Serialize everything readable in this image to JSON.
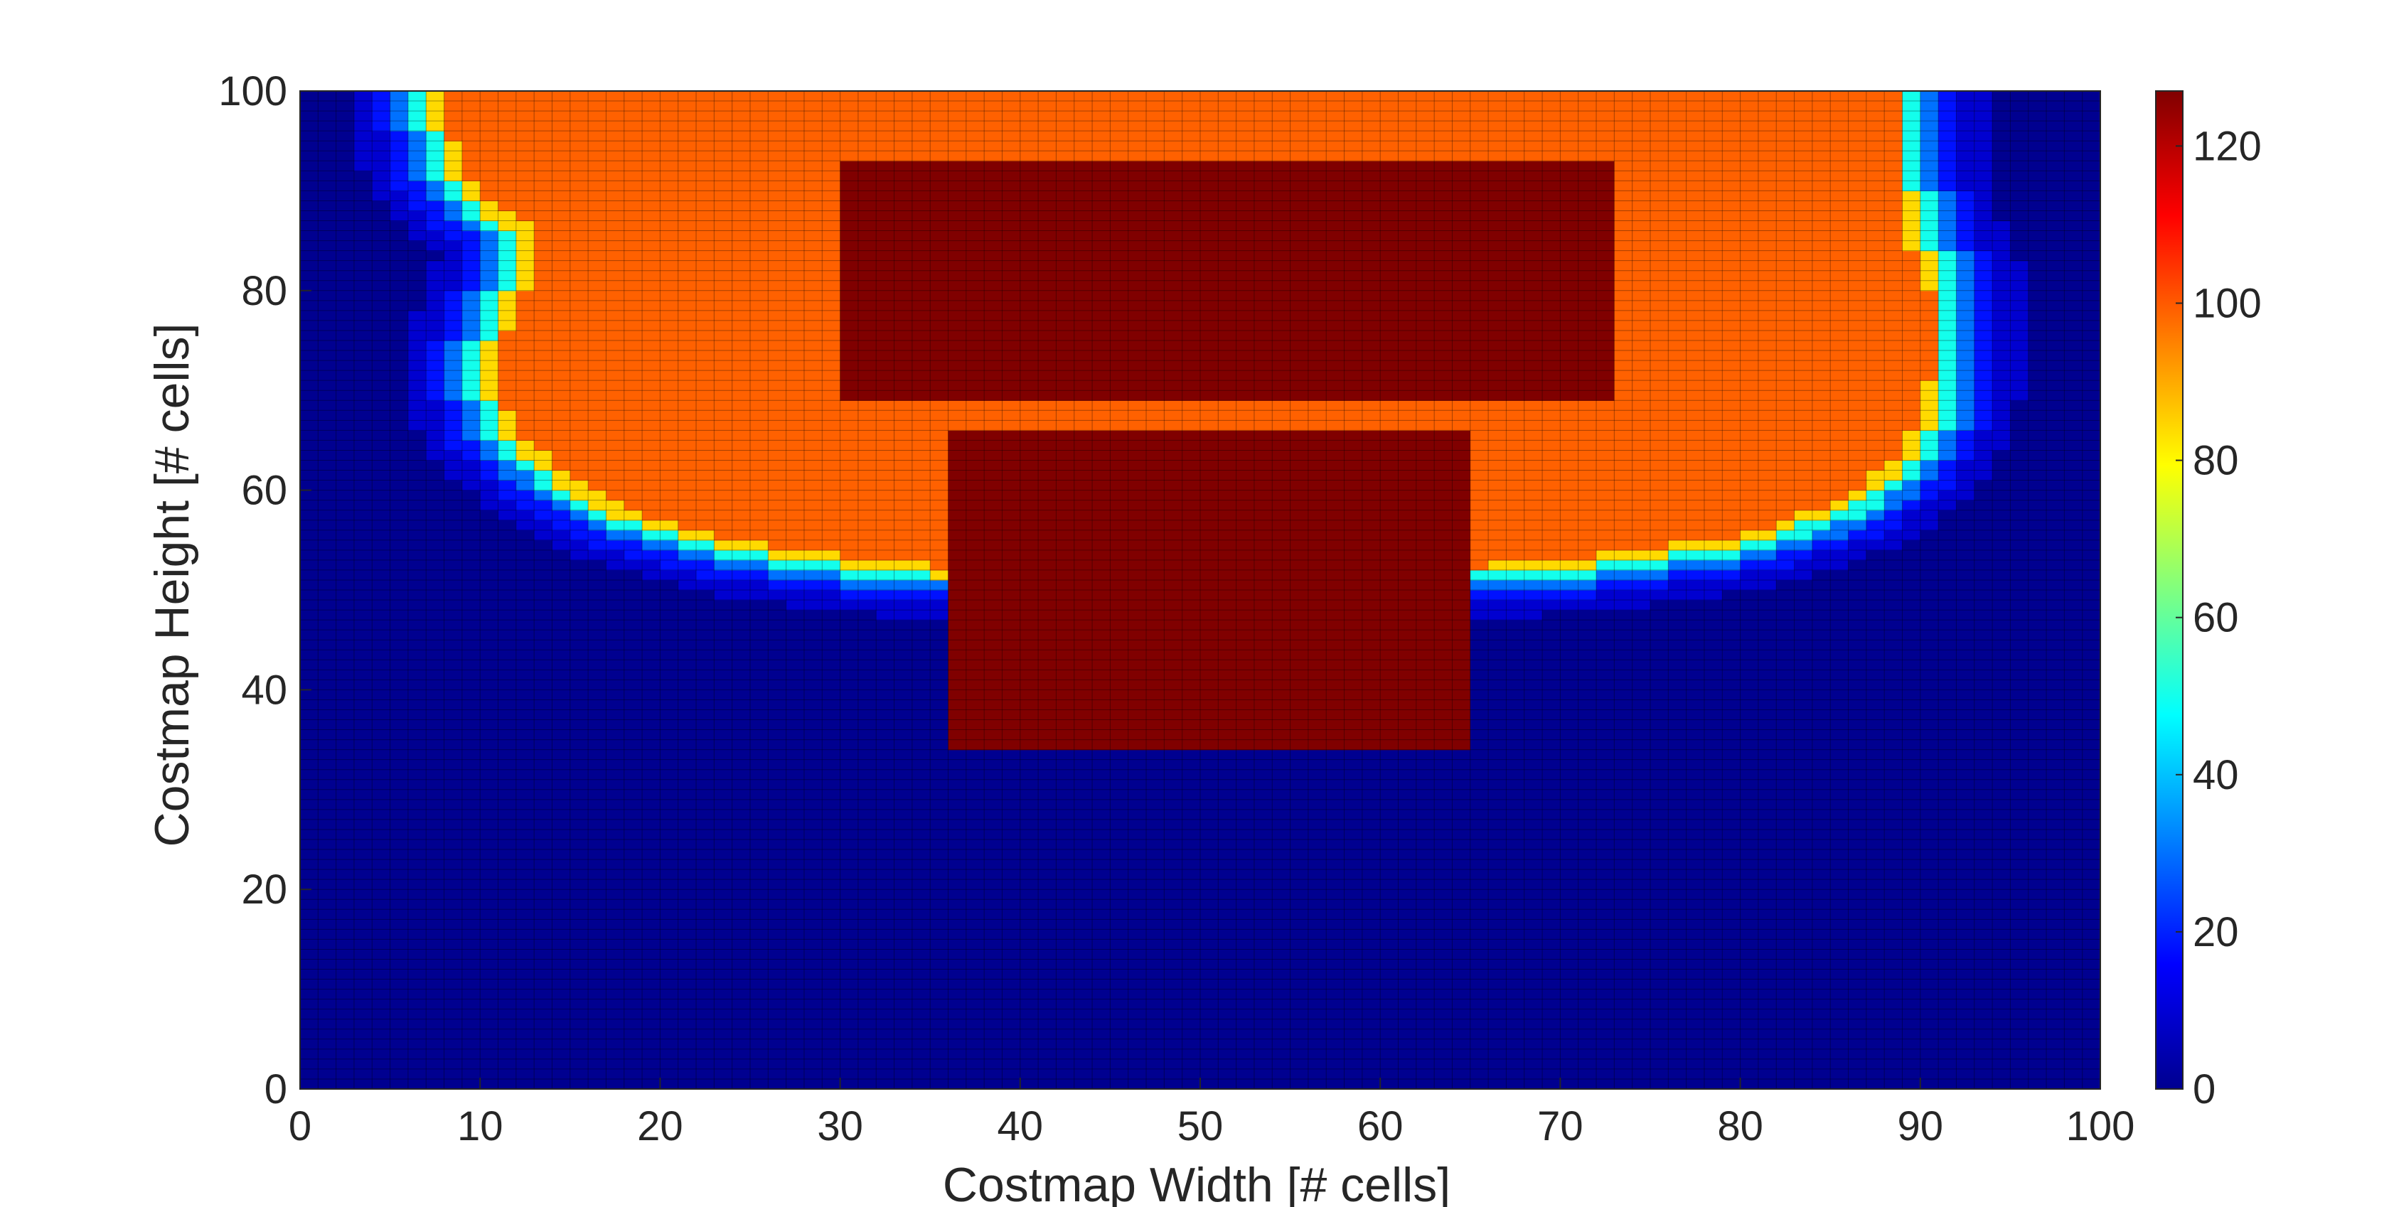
{
  "chart_data": {
    "type": "heatmap",
    "title": "",
    "xlabel": "Costmap Width [# cells]",
    "ylabel": "Costmap Height [# cells]",
    "xlim": [
      0,
      100
    ],
    "ylim": [
      0,
      100
    ],
    "x_ticks": [
      0,
      10,
      20,
      30,
      40,
      50,
      60,
      70,
      80,
      90,
      100
    ],
    "y_ticks": [
      0,
      20,
      40,
      60,
      80,
      100
    ],
    "grid": false,
    "grid_cells": [
      100,
      100
    ],
    "cell_edges": true,
    "colormap": "jet",
    "colorbar": {
      "position": "right",
      "range": [
        0,
        127
      ],
      "ticks": [
        0,
        20,
        40,
        60,
        80,
        100,
        120
      ]
    },
    "regions": [
      {
        "name": "lethal obstacle block",
        "value": 127,
        "x_range": [
          36,
          65
        ],
        "y_range": [
          34,
          66
        ]
      },
      {
        "name": "lethal obstacle band",
        "value": 127,
        "x_range": [
          30,
          73
        ],
        "y_range": [
          69,
          93
        ]
      },
      {
        "name": "inscribed inflation",
        "value": 99,
        "boundary": [
          [
            7,
            100
          ],
          [
            8,
            92
          ],
          [
            10,
            88
          ],
          [
            12,
            86
          ],
          [
            12,
            82
          ],
          [
            11,
            78
          ],
          [
            10,
            72
          ],
          [
            11,
            66
          ],
          [
            14,
            61
          ],
          [
            18,
            57
          ],
          [
            24,
            54
          ],
          [
            30,
            52.5
          ],
          [
            35,
            51.5
          ],
          [
            65,
            51.5
          ],
          [
            72,
            52.5
          ],
          [
            80,
            54.5
          ],
          [
            86,
            58
          ],
          [
            89,
            62
          ],
          [
            90.5,
            66
          ],
          [
            91.5,
            72
          ],
          [
            91.5,
            80
          ],
          [
            90,
            86
          ],
          [
            89.5,
            90
          ],
          [
            89.5,
            100
          ]
        ],
        "width_of_yellow_edge": 1
      },
      {
        "name": "free space",
        "value": 2
      }
    ]
  }
}
